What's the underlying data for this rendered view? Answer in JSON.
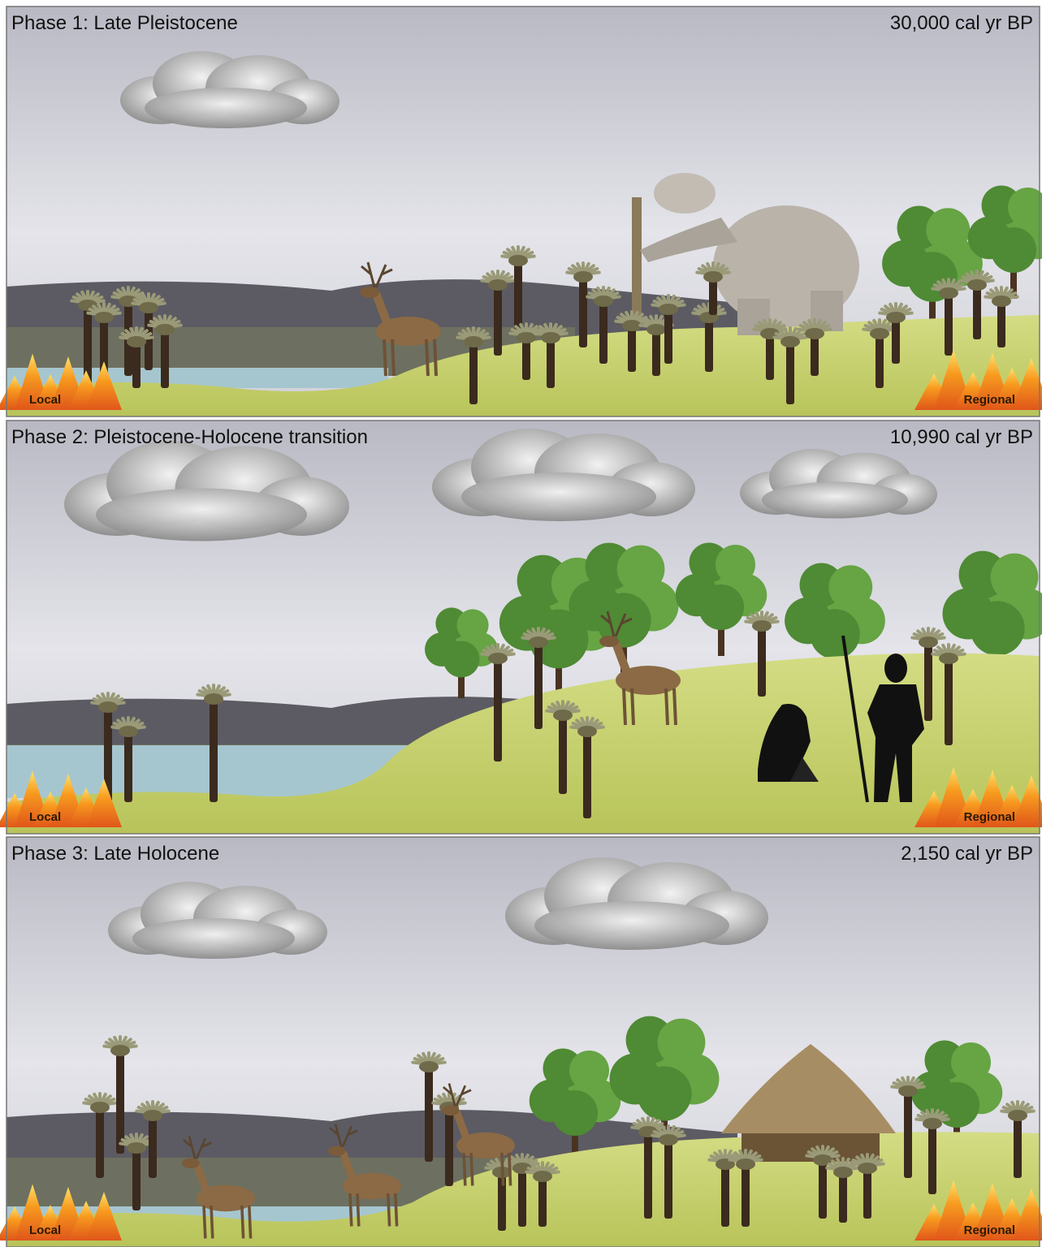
{
  "panels": [
    {
      "title": "Phase 1: Late Pleistocene",
      "date": "30,000 cal yr BP",
      "local": "Local",
      "regional": "Regional"
    },
    {
      "title": "Phase 2: Pleistocene-Holocene transition",
      "date": "10,990 cal yr BP",
      "local": "Local",
      "regional": "Regional"
    },
    {
      "title": "Phase 3: Late Holocene",
      "date": "2,150 cal yr BP",
      "local": "Local",
      "regional": "Regional"
    }
  ]
}
